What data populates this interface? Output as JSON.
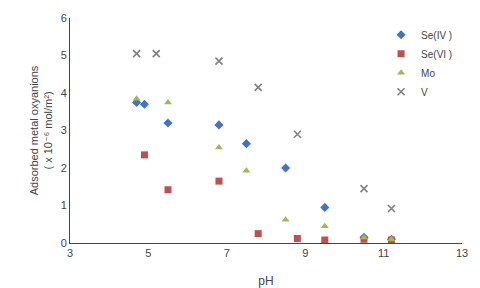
{
  "chart_data": {
    "type": "scatter",
    "xlabel": "pH",
    "ylabel": "Adsorbed metal oxyanions\n( x 10⁻⁶ mol/m²)",
    "xlim": [
      3,
      13
    ],
    "ylim": [
      0,
      6
    ],
    "xticks": [
      3,
      5,
      7,
      9,
      11,
      13
    ],
    "yticks": [
      0,
      1,
      2,
      3,
      4,
      5,
      6
    ],
    "grid": false,
    "legend": "upper right",
    "series": [
      {
        "name": "Se(IV )",
        "color": "#4472C4",
        "marker": "diamond",
        "x": [
          4.7,
          4.9,
          5.5,
          6.8,
          7.5,
          8.5,
          9.5,
          10.5,
          11.2
        ],
        "values": [
          3.75,
          3.7,
          3.2,
          3.15,
          2.65,
          2.0,
          0.95,
          0.15,
          0.1
        ]
      },
      {
        "name": "Se(VI )",
        "color": "#C0504D",
        "marker": "square",
        "x": [
          4.9,
          5.5,
          6.8,
          7.8,
          8.8,
          9.5,
          10.5,
          11.2
        ],
        "values": [
          2.35,
          1.42,
          1.65,
          0.25,
          0.12,
          0.08,
          0.1,
          0.08
        ]
      },
      {
        "name": "Mo",
        "color": "#9BBB59",
        "marker": "triangle-up",
        "x": [
          4.7,
          5.5,
          6.8,
          7.5,
          8.5,
          9.5,
          10.5,
          11.2
        ],
        "values": [
          3.85,
          3.75,
          2.55,
          1.93,
          0.62,
          0.45,
          0.15,
          0.1
        ]
      },
      {
        "name": "V",
        "color": "#808080",
        "marker": "x",
        "x": [
          4.7,
          5.2,
          6.8,
          7.8,
          8.8,
          10.5,
          11.2
        ],
        "values": [
          5.05,
          5.05,
          4.85,
          4.15,
          2.9,
          1.45,
          0.92
        ]
      }
    ]
  }
}
